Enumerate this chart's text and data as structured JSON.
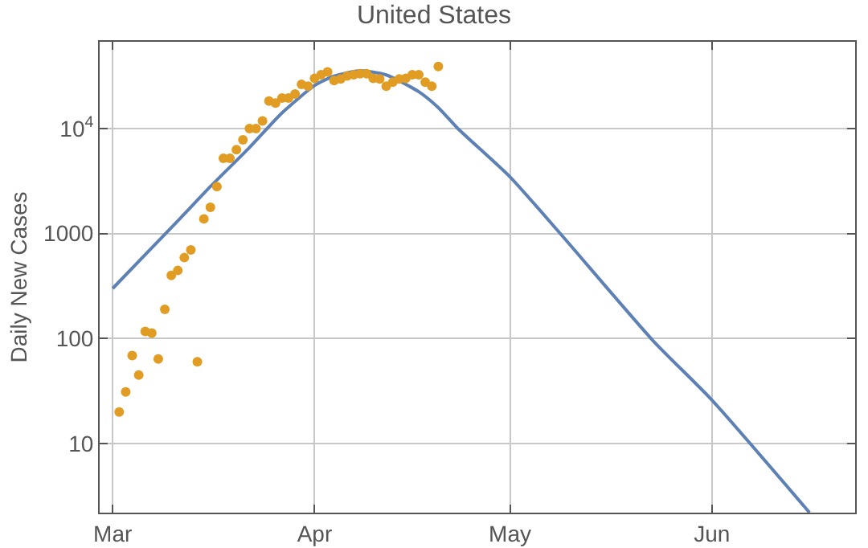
{
  "chart_data": {
    "type": "scatter",
    "title": "United States",
    "ylabel": "Daily New Cases",
    "xlim": [
      "--02-27",
      "--06-23"
    ],
    "xticks": [
      {
        "value": "--03-01",
        "label": "Mar"
      },
      {
        "value": "--04-01",
        "label": "Apr"
      },
      {
        "value": "--05-01",
        "label": "May"
      },
      {
        "value": "--06-01",
        "label": "Jun"
      }
    ],
    "ylim": [
      2.2,
      67000
    ],
    "yticks": [
      10,
      100,
      1000,
      {
        "value": 10000,
        "label": "10$^{4}$"
      }
    ],
    "log": true,
    "grid": true,
    "marker": "circle",
    "series": [
      {
        "color": "#e19c24",
        "x": [
          "--03-02",
          "--03-03",
          "--03-04",
          "--03-05",
          "--03-06",
          "--03-07",
          "--03-08",
          "--03-09",
          "--03-10",
          "--03-11",
          "--03-12",
          "--03-13",
          "--03-14",
          "--03-15",
          "--03-16",
          "--03-17",
          "--03-18",
          "--03-19",
          "--03-20",
          "--03-21",
          "--03-22",
          "--03-23",
          "--03-24",
          "--03-25",
          "--03-26",
          "--03-27",
          "--03-28",
          "--03-29",
          "--03-30",
          "--03-31",
          "--04-01",
          "--04-02",
          "--04-03",
          "--04-04",
          "--04-05",
          "--04-06",
          "--04-07",
          "--04-08",
          "--04-09",
          "--04-10",
          "--04-11",
          "--04-12",
          "--04-13",
          "--04-14",
          "--04-15",
          "--04-16",
          "--04-17",
          "--04-18",
          "--04-19",
          "--04-20"
        ],
        "values": [
          20,
          31,
          69,
          45,
          117,
          113,
          64,
          190,
          400,
          445,
          590,
          700,
          60,
          1380,
          1780,
          2800,
          5200,
          5200,
          6300,
          7800,
          10000,
          10000,
          11800,
          18300,
          17500,
          19500,
          19500,
          21300,
          26300,
          25300,
          30000,
          32500,
          34600,
          28600,
          29600,
          31700,
          32500,
          33300,
          33300,
          30000,
          29600,
          25300,
          27600,
          29600,
          30000,
          32500,
          32500,
          27600,
          25300,
          39000
        ]
      },
      {
        "type": "line",
        "marker": "none",
        "line_style": "solid",
        "color": "#5e81b5",
        "x": [
          "--03-01",
          "--03-06",
          "--03-11",
          "--03-16",
          "--03-22",
          "--03-27",
          "--04-01",
          "--04-04",
          "--04-08",
          "--04-12",
          "--04-17",
          "--04-20",
          "--04-23",
          "--05-01",
          "--05-09",
          "--05-23",
          "--06-01",
          "--06-16"
        ],
        "values": [
          300,
          630,
          1320,
          2800,
          6600,
          14100,
          25700,
          31600,
          35500,
          32400,
          22400,
          15800,
          10000,
          3470,
          955,
          95,
          26,
          2.2
        ]
      }
    ]
  }
}
